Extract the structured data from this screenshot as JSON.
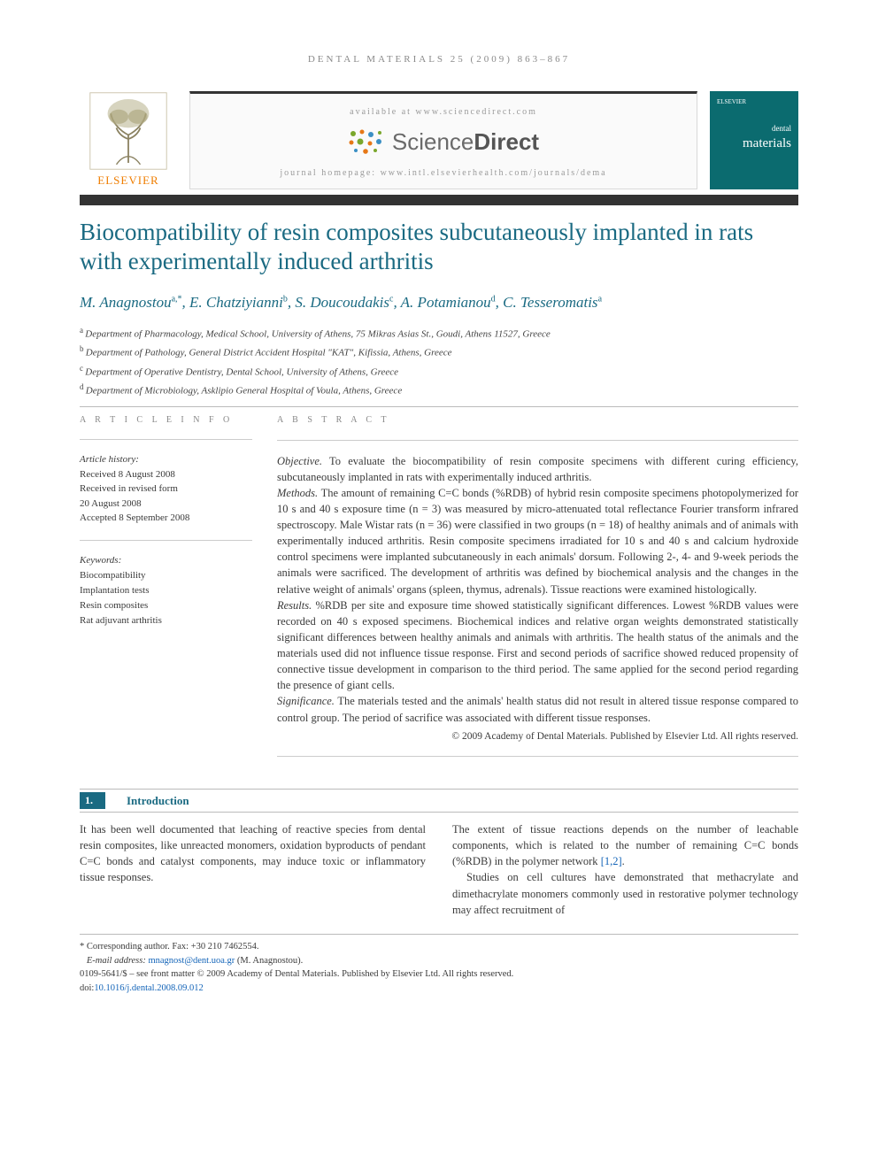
{
  "running_header": "DENTAL MATERIALS 25 (2009) 863–867",
  "banner": {
    "elsevier_label": "ELSEVIER",
    "available_at": "available at www.sciencedirect.com",
    "sciencedirect": {
      "science": "Science",
      "direct": "Direct"
    },
    "homepage": "journal homepage: www.intl.elsevierhealth.com/journals/dema",
    "cover": {
      "publisher": "ELSEVIER",
      "line1": "dental",
      "line2": "materials"
    }
  },
  "title": "Biocompatibility of resin composites subcutaneously implanted in rats with experimentally induced arthritis",
  "authors_html": "M. Anagnostou|a,*|, E. Chatziyianni|b|, S. Doucoudakis|c|, A. Potamianou|d|, C. Tesseromatis|a|",
  "affiliations": [
    {
      "s": "a",
      "t": "Department of Pharmacology, Medical School, University of Athens, 75 Mikras Asias St., Goudi, Athens 11527, Greece"
    },
    {
      "s": "b",
      "t": "Department of Pathology, General District Accident Hospital \"KAT\", Kifissia, Athens, Greece"
    },
    {
      "s": "c",
      "t": "Department of Operative Dentistry, Dental School, University of Athens, Greece"
    },
    {
      "s": "d",
      "t": "Department of Microbiology, Asklipio General Hospital of Voula, Athens, Greece"
    }
  ],
  "article_info": {
    "heading": "A R T I C L E   I N F O",
    "history_label": "Article history:",
    "received": "Received 8 August 2008",
    "revised1": "Received in revised form",
    "revised2": "20 August 2008",
    "accepted": "Accepted 8 September 2008",
    "keywords_label": "Keywords:",
    "keywords": [
      "Biocompatibility",
      "Implantation tests",
      "Resin composites",
      "Rat adjuvant arthritis"
    ]
  },
  "abstract": {
    "heading": "A B S T R A C T",
    "objective_label": "Objective.",
    "objective": " To evaluate the biocompatibility of resin composite specimens with different curing efficiency, subcutaneously implanted in rats with experimentally induced arthritis.",
    "methods_label": "Methods.",
    "methods": " The amount of remaining C=C bonds (%RDB) of hybrid resin composite specimens photopolymerized for 10 s and 40 s exposure time (n = 3) was measured by micro-attenuated total reflectance Fourier transform infrared spectroscopy. Male Wistar rats (n = 36) were classified in two groups (n = 18) of healthy animals and of animals with experimentally induced arthritis. Resin composite specimens irradiated for 10 s and 40 s and calcium hydroxide control specimens were implanted subcutaneously in each animals' dorsum. Following 2-, 4- and 9-week periods the animals were sacrificed. The development of arthritis was defined by biochemical analysis and the changes in the relative weight of animals' organs (spleen, thymus, adrenals). Tissue reactions were examined histologically.",
    "results_label": "Results.",
    "results": " %RDB per site and exposure time showed statistically significant differences. Lowest %RDB values were recorded on 40 s exposed specimens. Biochemical indices and relative organ weights demonstrated statistically significant differences between healthy animals and animals with arthritis. The health status of the animals and the materials used did not influence tissue response. First and second periods of sacrifice showed reduced propensity of connective tissue development in comparison to the third period. The same applied for the second period regarding the presence of giant cells.",
    "significance_label": "Significance.",
    "significance": " The materials tested and the animals' health status did not result in altered tissue response compared to control group. The period of sacrifice was associated with different tissue responses.",
    "copyright": "© 2009 Academy of Dental Materials. Published by Elsevier Ltd. All rights reserved."
  },
  "section1": {
    "num": "1.",
    "title": "Introduction",
    "col1": "It has been well documented that leaching of reactive species from dental resin composites, like unreacted monomers, oxidation byproducts of pendant C=C bonds and catalyst components, may induce toxic or inflammatory tissue responses.",
    "col2a": "The extent of tissue reactions depends on the number of leachable components, which is related to the number of remaining C=C bonds (%RDB) in the polymer network ",
    "col2a_ref": "[1,2]",
    "col2a_end": ".",
    "col2b": "Studies on cell cultures have demonstrated that methacrylate and dimethacrylate monomers commonly used in restorative polymer technology may affect recruitment of"
  },
  "footnotes": {
    "corr": "* Corresponding author. Fax: +30 210 7462554.",
    "email_label": "E-mail address: ",
    "email": "mnagnost@dent.uoa.gr",
    "email_tail": " (M. Anagnostou).",
    "issn": "0109-5641/$ – see front matter © 2009 Academy of Dental Materials. Published by Elsevier Ltd. All rights reserved.",
    "doi_label": "doi:",
    "doi": "10.1016/j.dental.2008.09.012"
  },
  "palette": {
    "teal": "#1a6a82",
    "orange": "#ef7d00",
    "cover_bg": "#0b6b6f",
    "link": "#1364b8",
    "text": "#3a3a3a",
    "rule": "#bbbbbb"
  }
}
